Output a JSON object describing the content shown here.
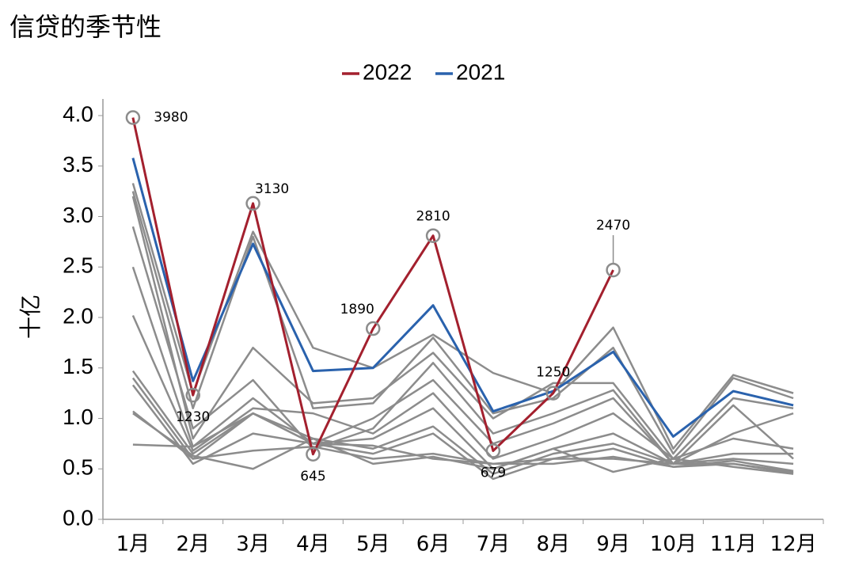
{
  "chart_data": {
    "type": "line",
    "title": "信贷的季节性",
    "y_label": "十亿",
    "categories": [
      "1月",
      "2月",
      "3月",
      "4月",
      "5月",
      "6月",
      "7月",
      "8月",
      "9月",
      "10月",
      "11月",
      "12月"
    ],
    "ylim": [
      0,
      4
    ],
    "yticks": [
      {
        "value": 0,
        "label": "0.0"
      },
      {
        "value": 0.5,
        "label": "0.5"
      },
      {
        "value": 1,
        "label": "1.0"
      },
      {
        "value": 1.5,
        "label": "1.5"
      },
      {
        "value": 2,
        "label": "2.0"
      },
      {
        "value": 2.5,
        "label": "2.5"
      },
      {
        "value": 3,
        "label": "3.0"
      },
      {
        "value": 3.5,
        "label": "3.5"
      },
      {
        "value": 4,
        "label": "4.0"
      }
    ],
    "series": [
      {
        "name": "2022",
        "color": "#a3202e",
        "values": [
          3.98,
          1.23,
          3.13,
          0.645,
          1.89,
          2.81,
          0.679,
          1.25,
          2.47,
          null,
          null,
          null
        ],
        "value_labels": [
          "3980",
          "1230",
          "3130",
          "645",
          "1890",
          "2810",
          "679",
          "1250",
          "2470",
          null,
          null,
          null
        ]
      },
      {
        "name": "2021",
        "color": "#2a62ad",
        "values": [
          3.58,
          1.37,
          2.73,
          1.47,
          1.5,
          2.12,
          1.07,
          1.27,
          1.66,
          0.82,
          1.27,
          1.13
        ]
      },
      {
        "color": "#8c8c8c",
        "values": [
          3.33,
          1.25,
          2.85,
          1.7,
          1.5,
          1.83,
          1.45,
          1.25,
          1.9,
          0.7,
          1.43,
          1.25
        ]
      },
      {
        "color": "#8c8c8c",
        "values": [
          3.25,
          1.1,
          2.8,
          1.1,
          1.15,
          1.8,
          1.05,
          1.2,
          1.7,
          0.65,
          1.4,
          1.2
        ]
      },
      {
        "color": "#8c8c8c",
        "values": [
          3.2,
          0.8,
          1.7,
          1.15,
          1.2,
          1.65,
          1.0,
          1.35,
          1.35,
          0.6,
          1.2,
          1.1
        ]
      },
      {
        "color": "#8c8c8c",
        "values": [
          2.9,
          0.9,
          1.38,
          0.7,
          0.9,
          1.55,
          0.85,
          1.05,
          1.28,
          0.55,
          1.13,
          0.6
        ]
      },
      {
        "color": "#8c8c8c",
        "values": [
          2.5,
          0.72,
          1.2,
          0.75,
          1.0,
          1.38,
          0.75,
          0.95,
          1.2,
          0.55,
          0.85,
          1.05
        ]
      },
      {
        "color": "#8c8c8c",
        "values": [
          2.02,
          0.68,
          1.1,
          1.05,
          0.85,
          1.25,
          0.6,
          0.8,
          1.05,
          0.6,
          0.8,
          0.7
        ]
      },
      {
        "color": "#8c8c8c",
        "values": [
          1.47,
          0.65,
          1.05,
          0.75,
          0.8,
          1.1,
          0.5,
          0.7,
          0.85,
          0.55,
          0.65,
          0.65
        ]
      },
      {
        "color": "#8c8c8c",
        "values": [
          1.4,
          0.6,
          1.05,
          0.8,
          0.7,
          0.92,
          0.45,
          0.65,
          0.75,
          0.55,
          0.6,
          0.55
        ]
      },
      {
        "color": "#8c8c8c",
        "values": [
          1.33,
          0.55,
          0.85,
          0.75,
          0.65,
          0.85,
          0.4,
          0.6,
          0.7,
          0.52,
          0.58,
          0.48
        ]
      },
      {
        "color": "#8c8c8c",
        "values": [
          1.07,
          0.6,
          0.68,
          0.72,
          0.6,
          0.65,
          0.55,
          0.55,
          0.62,
          0.52,
          0.55,
          0.47
        ]
      },
      {
        "color": "#8c8c8c",
        "values": [
          1.05,
          0.63,
          0.5,
          0.8,
          0.55,
          0.62,
          0.5,
          0.7,
          0.47,
          0.6,
          0.52,
          0.45
        ]
      },
      {
        "color": "#8c8c8c",
        "values": [
          0.74,
          0.72,
          1.05,
          0.75,
          0.73,
          0.6,
          0.55,
          0.6,
          0.6,
          0.55,
          0.55,
          0.46
        ]
      }
    ]
  }
}
